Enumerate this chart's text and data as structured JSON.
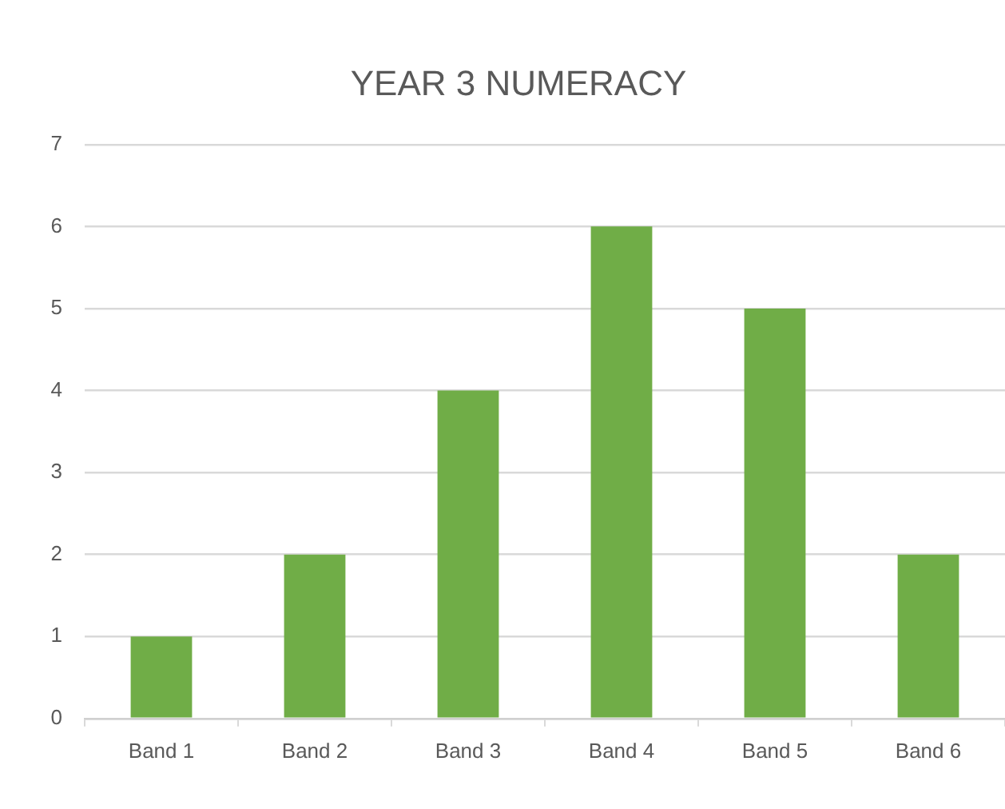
{
  "chart_data": {
    "type": "bar",
    "title": "YEAR 3 NUMERACY",
    "categories": [
      "Band 1",
      "Band 2",
      "Band 3",
      "Band 4",
      "Band 5",
      "Band 6"
    ],
    "values": [
      1,
      2,
      4,
      6,
      5,
      2
    ],
    "color": "#70ad47",
    "ylim": [
      0,
      7
    ],
    "yticks": [
      0,
      1,
      2,
      3,
      4,
      5,
      6,
      7
    ],
    "grid": "y",
    "legend": false
  }
}
